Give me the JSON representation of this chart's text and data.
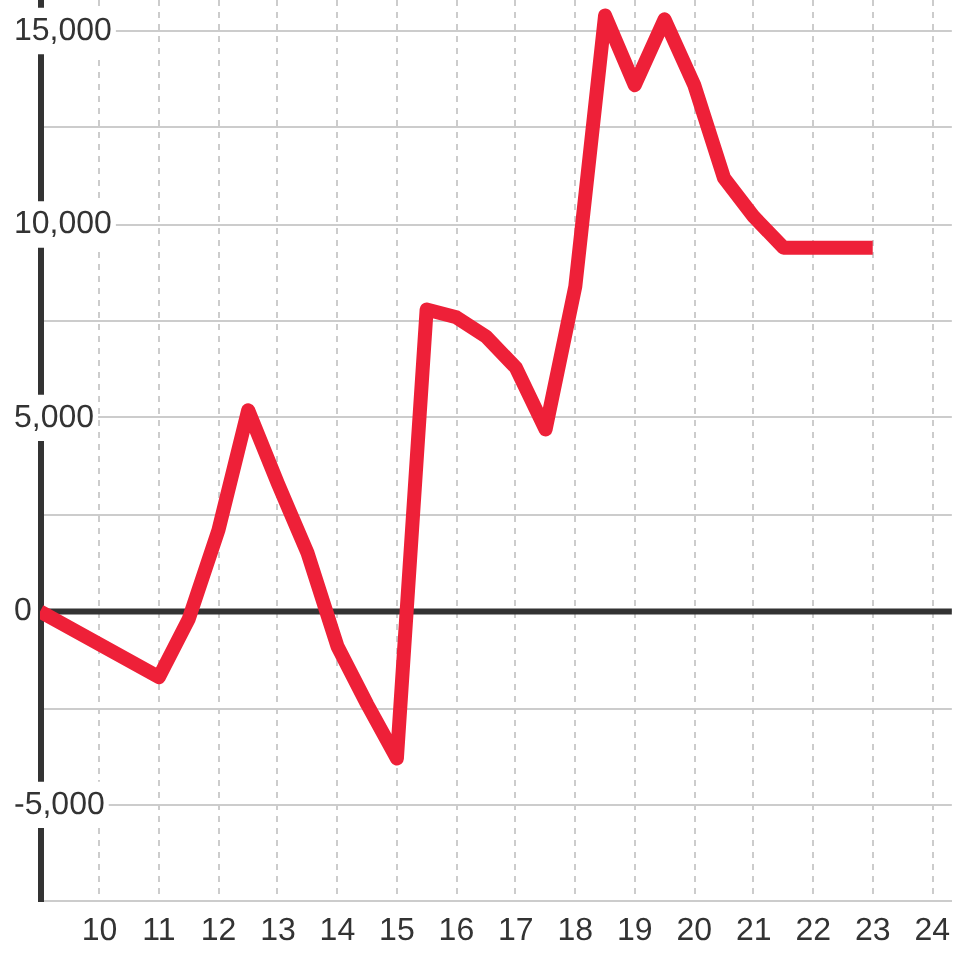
{
  "chart_data": {
    "type": "line",
    "x": [
      9,
      11,
      11.5,
      12,
      12.5,
      13,
      13.5,
      14,
      14.5,
      15,
      15.5,
      16,
      16.5,
      17,
      17.5,
      18,
      18.5,
      19,
      19.5,
      20,
      20.5,
      21,
      21.5,
      23
    ],
    "series": [
      {
        "color": "#ee2038",
        "values": [
          0,
          -1700,
          -200,
          2100,
          5200,
          3300,
          1500,
          -900,
          -2400,
          -3800,
          7800,
          7600,
          7100,
          6300,
          4700,
          8400,
          15400,
          13600,
          15300,
          13600,
          11200,
          10200,
          9400,
          9400
        ]
      }
    ],
    "xlim": [
      9,
      24.33
    ],
    "xticks": [
      10,
      11,
      12,
      13,
      14,
      15,
      16,
      17,
      18,
      19,
      20,
      21,
      22,
      23,
      24
    ],
    "ylim": [
      -7500,
      15800
    ],
    "yticks": [
      {
        "value": -7500,
        "label": null
      },
      {
        "value": -5000,
        "label": "-5,000"
      },
      {
        "value": -2500,
        "label": null
      },
      0,
      {
        "value": 2500,
        "label": null
      },
      {
        "value": 5000,
        "label": "5,000"
      },
      {
        "value": 7500,
        "label": null
      },
      {
        "value": 10000,
        "label": "10,000"
      },
      {
        "value": 12500,
        "label": null
      },
      {
        "value": 15000,
        "label": "15,000"
      }
    ],
    "grid": true,
    "legend": false,
    "marker": "none",
    "line_style": "solid",
    "ref_lines": [
      {
        "axis": "y",
        "value": 0,
        "color": "#333333"
      }
    ]
  }
}
